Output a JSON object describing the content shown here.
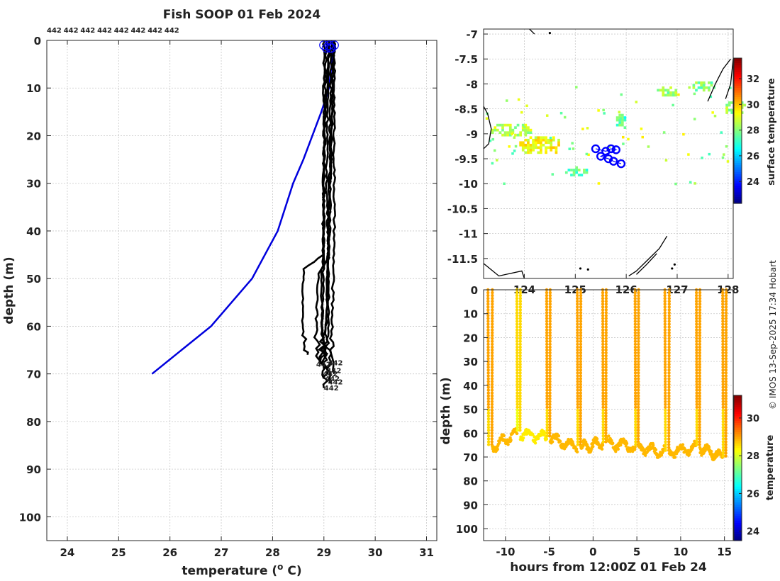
{
  "figure": {
    "title": "Fish SOOP 01 Feb 2024",
    "credit": "© IMOS 13-Sep-2025 17:34 Hobart"
  },
  "chart_data": [
    {
      "id": "profile",
      "type": "line",
      "xlabel": "temperature (o C)",
      "xlabel_main": "temperature (",
      "xlabel_sup": "o",
      "xlabel_end": " C)",
      "ylabel": "depth (m)",
      "xlim": [
        23.6,
        31.2
      ],
      "ylim": [
        105,
        0
      ],
      "xticks": [
        24,
        25,
        26,
        27,
        28,
        29,
        30,
        31
      ],
      "yticks": [
        0,
        10,
        20,
        30,
        40,
        50,
        60,
        70,
        80,
        90,
        100
      ],
      "top_labels": [
        "442",
        "442",
        "442",
        "442",
        "442",
        "442",
        "442",
        "442"
      ],
      "bottom_labels": [
        "442",
        "442",
        "442",
        "442",
        "442",
        "442",
        "442"
      ],
      "climatology": {
        "name": "climatology",
        "color": "#0000dd",
        "points": [
          [
            29.2,
            0
          ],
          [
            29.1,
            10
          ],
          [
            28.95,
            15
          ],
          [
            28.6,
            25
          ],
          [
            28.4,
            30
          ],
          [
            28.1,
            40
          ],
          [
            27.6,
            50
          ],
          [
            26.8,
            60
          ],
          [
            25.65,
            70
          ]
        ]
      },
      "profiles": {
        "color": "#000000",
        "count": 8,
        "representative": [
          {
            "name": "cast-1",
            "points": [
              [
                29.05,
                0
              ],
              [
                29.0,
                20
              ],
              [
                29.0,
                45
              ],
              [
                28.6,
                48
              ],
              [
                28.58,
                55
              ],
              [
                28.6,
                65
              ],
              [
                28.68,
                66
              ]
            ]
          },
          {
            "name": "cast-2",
            "points": [
              [
                29.1,
                0
              ],
              [
                29.05,
                30
              ],
              [
                29.1,
                45
              ],
              [
                28.9,
                49
              ],
              [
                28.85,
                60
              ],
              [
                28.9,
                67
              ]
            ]
          },
          {
            "name": "cast-3",
            "points": [
              [
                29.2,
                0
              ],
              [
                29.15,
                20
              ],
              [
                29.1,
                40
              ],
              [
                29.05,
                60
              ],
              [
                29.0,
                71
              ]
            ]
          },
          {
            "name": "cast-4",
            "points": [
              [
                29.15,
                0
              ],
              [
                29.1,
                30
              ],
              [
                29.05,
                55
              ],
              [
                29.0,
                73
              ]
            ]
          },
          {
            "name": "cast-5",
            "points": [
              [
                29.1,
                0
              ],
              [
                29.0,
                25
              ],
              [
                28.95,
                60
              ],
              [
                29.0,
                69
              ]
            ]
          },
          {
            "name": "cast-6",
            "points": [
              [
                29.2,
                0
              ],
              [
                29.2,
                40
              ],
              [
                29.15,
                65
              ],
              [
                29.2,
                70
              ]
            ]
          },
          {
            "name": "cast-7",
            "points": [
              [
                29.0,
                0
              ],
              [
                29.0,
                35
              ],
              [
                28.98,
                60
              ],
              [
                28.95,
                68
              ]
            ]
          },
          {
            "name": "cast-8",
            "points": [
              [
                29.18,
                0
              ],
              [
                29.1,
                45
              ],
              [
                29.08,
                62
              ],
              [
                29.12,
                72
              ]
            ]
          }
        ]
      },
      "surface_markers": [
        29.0,
        29.05,
        29.1,
        29.15,
        29.2,
        29.12
      ]
    },
    {
      "id": "sst-map",
      "type": "heatmap",
      "xlabel": "",
      "ylabel": "",
      "xlim": [
        123.2,
        128.1
      ],
      "ylim": [
        -11.9,
        -6.9
      ],
      "xticks": [
        124,
        125,
        126,
        127,
        128
      ],
      "xtick_labels": [
        "124",
        "125",
        "126",
        "127",
        "128"
      ],
      "yticks": [
        -7,
        -7.5,
        -8,
        -8.5,
        -9,
        -9.5,
        -10,
        -10.5,
        -11,
        -11.5
      ],
      "ytick_labels": [
        "-7",
        "-7.5",
        "-8",
        "-8.5",
        "-9",
        "-9.5",
        "-10",
        "-10.5",
        "-11",
        "-11.5"
      ],
      "colorbar": {
        "label": "surface temperature",
        "range": [
          22.3,
          33.6
        ],
        "ticks": [
          24,
          26,
          28,
          30,
          32
        ]
      },
      "patches": [
        {
          "lon": 123.3,
          "lat": -9.05,
          "w": 0.9,
          "h": 0.25,
          "t": 28.5
        },
        {
          "lon": 123.9,
          "lat": -9.4,
          "w": 0.85,
          "h": 0.35,
          "t": 29.3
        },
        {
          "lon": 124.8,
          "lat": -9.85,
          "w": 0.45,
          "h": 0.2,
          "t": 27.6
        },
        {
          "lon": 126.6,
          "lat": -8.25,
          "w": 0.45,
          "h": 0.2,
          "t": 28.1
        },
        {
          "lon": 127.3,
          "lat": -8.15,
          "w": 0.45,
          "h": 0.2,
          "t": 28.0
        },
        {
          "lon": 127.9,
          "lat": -8.6,
          "w": 0.45,
          "h": 0.25,
          "t": 28.3
        },
        {
          "lon": 125.8,
          "lat": -8.9,
          "w": 0.2,
          "h": 0.3,
          "t": 27.4
        }
      ],
      "track": [
        [
          125.4,
          -9.3
        ],
        [
          125.6,
          -9.35
        ],
        [
          125.7,
          -9.3
        ],
        [
          125.8,
          -9.32
        ],
        [
          125.5,
          -9.45
        ],
        [
          125.65,
          -9.5
        ],
        [
          125.75,
          -9.55
        ],
        [
          125.9,
          -9.6
        ]
      ]
    },
    {
      "id": "depth-time",
      "type": "scatter",
      "xlabel": "hours from 12:00Z 01 Feb 24",
      "ylabel": "depth (m)",
      "xlim": [
        -12.5,
        16
      ],
      "ylim": [
        105,
        0
      ],
      "xticks": [
        -10,
        -5,
        0,
        5,
        10,
        15
      ],
      "yticks": [
        0,
        10,
        20,
        30,
        40,
        50,
        60,
        70,
        80,
        90,
        100
      ],
      "colorbar": {
        "label": "temperature",
        "range": [
          23.5,
          31.2
        ],
        "ticks": [
          24,
          26,
          28,
          30
        ]
      },
      "casts": [
        {
          "t0": -12.0,
          "t1": -11.5,
          "bottom": 66,
          "temp": 29.0
        },
        {
          "t0": -8.7,
          "t1": -8.3,
          "bottom": 60,
          "temp": 28.6
        },
        {
          "t0": -5.3,
          "t1": -4.9,
          "bottom": 62,
          "temp": 29.0
        },
        {
          "t0": -1.8,
          "t1": -1.4,
          "bottom": 66,
          "temp": 29.0
        },
        {
          "t0": 1.1,
          "t1": 1.5,
          "bottom": 64,
          "temp": 29.0
        },
        {
          "t0": 4.8,
          "t1": 5.2,
          "bottom": 66,
          "temp": 29.0
        },
        {
          "t0": 8.2,
          "t1": 8.7,
          "bottom": 68,
          "temp": 29.0
        },
        {
          "t0": 11.8,
          "t1": 12.2,
          "bottom": 66,
          "temp": 29.0
        },
        {
          "t0": 14.8,
          "t1": 15.2,
          "bottom": 70,
          "temp": 29.0
        }
      ]
    }
  ]
}
